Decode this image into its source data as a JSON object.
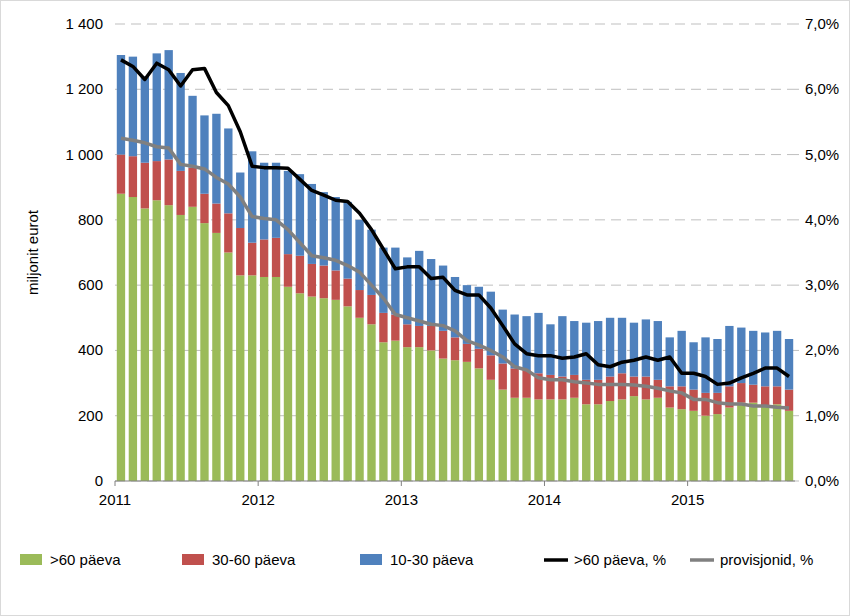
{
  "chart_data": {
    "type": "bar",
    "stacked": true,
    "grid": true,
    "legend": "bottom",
    "y_label": "miljonit eurot",
    "categories": [
      "2011",
      null,
      null,
      null,
      null,
      null,
      null,
      null,
      null,
      null,
      null,
      null,
      "2012",
      null,
      null,
      null,
      null,
      null,
      null,
      null,
      null,
      null,
      null,
      null,
      "2013",
      null,
      null,
      null,
      null,
      null,
      null,
      null,
      null,
      null,
      null,
      null,
      "2014",
      null,
      null,
      null,
      null,
      null,
      null,
      null,
      null,
      null,
      null,
      null,
      "2015",
      null,
      null,
      null,
      null,
      null,
      null,
      null,
      null
    ],
    "ylim": [
      0,
      1400
    ],
    "yticks": [
      0,
      200,
      400,
      600,
      800,
      {
        "value": 1000,
        "label": "1 000"
      },
      {
        "value": 1200,
        "label": "1 200"
      },
      {
        "value": 1400,
        "label": "1 400"
      }
    ],
    "y2lim": [
      0,
      7
    ],
    "y2ticks": [
      {
        "value": 0,
        "label": "0,0%"
      },
      {
        "value": 1,
        "label": "1,0%"
      },
      {
        "value": 2,
        "label": "2,0%"
      },
      {
        "value": 3,
        "label": "3,0%"
      },
      {
        "value": 4,
        "label": "4,0%"
      },
      {
        "value": 5,
        "label": "5,0%"
      },
      {
        "value": 6,
        "label": "6,0%"
      },
      {
        "value": 7,
        "label": "7,0%"
      }
    ],
    "series": [
      {
        "name": ">60 päeva",
        "type": "bar",
        "color": "#9bbb59",
        "values": [
          880,
          870,
          835,
          860,
          845,
          815,
          840,
          790,
          760,
          700,
          630,
          630,
          625,
          625,
          595,
          575,
          565,
          560,
          555,
          535,
          500,
          480,
          425,
          430,
          410,
          410,
          400,
          375,
          370,
          365,
          345,
          310,
          280,
          255,
          255,
          250,
          250,
          250,
          255,
          235,
          235,
          245,
          250,
          260,
          250,
          255,
          225,
          220,
          215,
          200,
          205,
          225,
          240,
          240,
          230,
          235,
          215
        ]
      },
      {
        "name": "30-60 päeva",
        "type": "bar",
        "color": "#c0504d",
        "values": [
          120,
          125,
          140,
          120,
          140,
          135,
          120,
          90,
          90,
          120,
          145,
          100,
          115,
          120,
          100,
          115,
          100,
          100,
          90,
          85,
          85,
          90,
          90,
          80,
          70,
          65,
          75,
          85,
          70,
          55,
          60,
          75,
          80,
          90,
          85,
          80,
          75,
          70,
          70,
          75,
          75,
          75,
          80,
          60,
          70,
          55,
          65,
          70,
          65,
          70,
          65,
          65,
          60,
          55,
          60,
          55,
          65
        ]
      },
      {
        "name": "10-30 päeva",
        "type": "bar",
        "color": "#4f81bd",
        "values": [
          305,
          305,
          265,
          330,
          335,
          300,
          220,
          240,
          275,
          260,
          170,
          280,
          235,
          230,
          255,
          250,
          245,
          225,
          225,
          235,
          215,
          200,
          200,
          205,
          205,
          230,
          205,
          200,
          185,
          180,
          190,
          195,
          165,
          165,
          165,
          185,
          155,
          185,
          165,
          175,
          180,
          180,
          170,
          165,
          175,
          180,
          150,
          170,
          145,
          170,
          165,
          185,
          170,
          165,
          165,
          170,
          155
        ]
      },
      {
        "name": ">60 päeva, %",
        "type": "line",
        "axis": "y2",
        "color": "#000000",
        "values": [
          6.45,
          6.35,
          6.15,
          6.4,
          6.3,
          6.05,
          6.3,
          6.32,
          5.95,
          5.75,
          5.35,
          4.82,
          4.8,
          4.8,
          4.79,
          4.62,
          4.45,
          4.38,
          4.3,
          4.28,
          4.1,
          3.85,
          3.55,
          3.25,
          3.28,
          3.28,
          3.1,
          3.12,
          2.92,
          2.85,
          2.85,
          2.65,
          2.38,
          2.1,
          1.95,
          1.92,
          1.92,
          1.88,
          1.9,
          1.95,
          1.78,
          1.75,
          1.82,
          1.85,
          1.9,
          1.85,
          1.9,
          1.65,
          1.65,
          1.6,
          1.48,
          1.5,
          1.58,
          1.65,
          1.73,
          1.73,
          1.6
        ]
      },
      {
        "name": "provisjonid, %",
        "type": "line",
        "axis": "y2",
        "color": "#808080",
        "values": [
          5.25,
          5.22,
          5.18,
          5.12,
          5.1,
          4.85,
          4.82,
          4.78,
          4.65,
          4.55,
          4.35,
          4.05,
          4.02,
          4.0,
          3.85,
          3.65,
          3.45,
          3.42,
          3.38,
          3.3,
          3.2,
          3.0,
          2.8,
          2.55,
          2.5,
          2.45,
          2.4,
          2.38,
          2.3,
          2.15,
          2.08,
          2.0,
          1.9,
          1.75,
          1.7,
          1.58,
          1.55,
          1.55,
          1.52,
          1.5,
          1.48,
          1.48,
          1.48,
          1.47,
          1.45,
          1.42,
          1.38,
          1.35,
          1.25,
          1.25,
          1.2,
          1.18,
          1.18,
          1.15,
          1.15,
          1.13,
          1.12
        ]
      }
    ]
  }
}
